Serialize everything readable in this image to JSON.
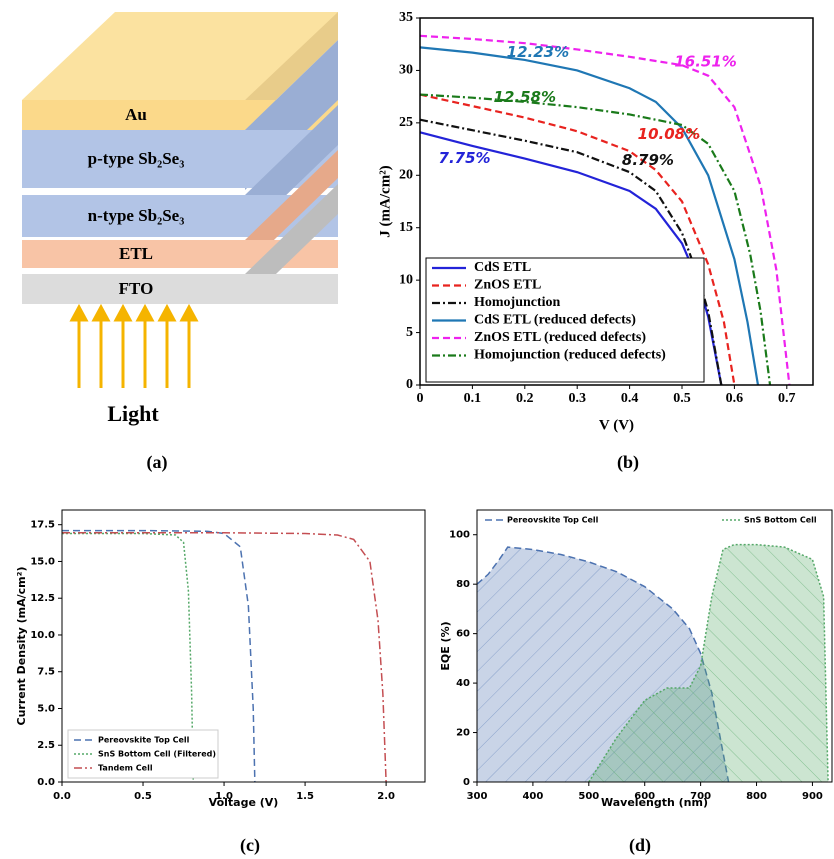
{
  "diagram": {
    "layers": [
      "Au",
      "p-type Sb₂Se₃",
      "n-type Sb₂Se₃",
      "ETL",
      "FTO"
    ],
    "light": "Light",
    "label": "(a)"
  },
  "chart_data": [
    {
      "type": "line",
      "label": "(b)",
      "x_label": "V (V)",
      "y_label": "J (mA/cm²)",
      "xlim": [
        0,
        0.75
      ],
      "ylim": [
        0,
        35
      ],
      "xticks": [
        0,
        0.1,
        0.2,
        0.3,
        0.4,
        0.5,
        0.6,
        0.7
      ],
      "yticks": [
        0,
        5,
        10,
        15,
        20,
        25,
        30,
        35
      ],
      "grid": false,
      "legend": "lower left",
      "series": [
        {
          "name": "CdS ETL",
          "color": "#2323d8",
          "linestyle": "solid",
          "x": [
            0,
            0.1,
            0.2,
            0.3,
            0.4,
            0.45,
            0.5,
            0.53,
            0.55,
            0.575
          ],
          "values": [
            24.1,
            22.8,
            21.6,
            20.3,
            18.5,
            16.8,
            13.5,
            10,
            6.5,
            0
          ]
        },
        {
          "name": "ZnOS ETL",
          "color": "#e8231f",
          "linestyle": "dashed",
          "x": [
            0,
            0.1,
            0.2,
            0.3,
            0.4,
            0.45,
            0.5,
            0.55,
            0.58,
            0.6
          ],
          "values": [
            27.7,
            26.6,
            25.5,
            24.2,
            22.3,
            20.5,
            17.5,
            11.5,
            6,
            0
          ]
        },
        {
          "name": "Homojunction",
          "color": "#111111",
          "linestyle": "dashdot",
          "x": [
            0,
            0.1,
            0.2,
            0.3,
            0.4,
            0.45,
            0.5,
            0.53,
            0.55,
            0.575
          ],
          "values": [
            25.3,
            24.3,
            23.3,
            22.2,
            20.3,
            18.5,
            14.5,
            10.5,
            7,
            0
          ]
        },
        {
          "name": "CdS ETL (reduced defects)",
          "color": "#1f77b4",
          "linestyle": "solid",
          "x": [
            0,
            0.1,
            0.2,
            0.3,
            0.4,
            0.45,
            0.5,
            0.55,
            0.6,
            0.625,
            0.645
          ],
          "values": [
            32.2,
            31.7,
            31,
            30,
            28.3,
            27,
            24.5,
            20,
            12,
            6,
            0
          ]
        },
        {
          "name": "ZnOS ETL (reduced defects)",
          "color": "#ee22ee",
          "linestyle": "dashed",
          "x": [
            0,
            0.1,
            0.2,
            0.3,
            0.4,
            0.5,
            0.55,
            0.6,
            0.65,
            0.68,
            0.705
          ],
          "values": [
            33.3,
            33,
            32.6,
            32,
            31.3,
            30.5,
            29.5,
            26.5,
            19,
            11,
            0
          ]
        },
        {
          "name": "Homojunction (reduced defects)",
          "color": "#1a7a1a",
          "linestyle": "dashdot",
          "x": [
            0,
            0.1,
            0.2,
            0.3,
            0.4,
            0.5,
            0.55,
            0.6,
            0.63,
            0.65,
            0.668
          ],
          "values": [
            27.7,
            27.4,
            27,
            26.5,
            25.8,
            24.8,
            23,
            18.5,
            12.5,
            7,
            0
          ]
        }
      ],
      "annotations": [
        {
          "text": "7.75%",
          "color": "#2323d8"
        },
        {
          "text": "8.79%",
          "color": "#111111"
        },
        {
          "text": "10.08%",
          "color": "#e8231f"
        },
        {
          "text": "12.23%",
          "color": "#1f77b4"
        },
        {
          "text": "12.58%",
          "color": "#1a7a1a"
        },
        {
          "text": "16.51%",
          "color": "#ee22ee"
        }
      ]
    },
    {
      "type": "line",
      "label": "(c)",
      "x_label": "Voltage (V)",
      "y_label": "Current Density (mA/cm²)",
      "xlim": [
        0,
        2.24
      ],
      "ylim": [
        0,
        18.5
      ],
      "xticks": [
        {
          "value": 0,
          "label": "0.0"
        },
        {
          "value": 0.5,
          "label": "0.5"
        },
        {
          "value": 1,
          "label": "1.0"
        },
        {
          "value": 1.5,
          "label": "1.5"
        },
        {
          "value": 2,
          "label": "2.0"
        }
      ],
      "yticks": [
        {
          "value": 0,
          "label": "0.0"
        },
        2.5,
        {
          "value": 5,
          "label": "5.0"
        },
        7.5,
        {
          "value": 10,
          "label": "10.0"
        },
        12.5,
        {
          "value": 15,
          "label": "15.0"
        },
        17.5
      ],
      "grid": false,
      "legend": "lower left",
      "series": [
        {
          "name": "Pereovskite Top Cell",
          "color": "#4c72b0",
          "linestyle": "dashed",
          "x": [
            0,
            0.5,
            0.9,
            1.0,
            1.1,
            1.15,
            1.18,
            1.19
          ],
          "values": [
            17.1,
            17.1,
            17.05,
            16.9,
            16,
            12,
            5,
            0
          ]
        },
        {
          "name": "SnS Bottom Cell (Filtered)",
          "color": "#55a868",
          "linestyle": "dotted",
          "x": [
            0,
            0.5,
            0.7,
            0.75,
            0.78,
            0.8,
            0.81
          ],
          "values": [
            16.9,
            16.9,
            16.8,
            16.3,
            13,
            6,
            0
          ]
        },
        {
          "name": "Tandem Cell",
          "color": "#c44e52",
          "linestyle": "dashdot",
          "x": [
            0,
            1,
            1.5,
            1.7,
            1.8,
            1.9,
            1.95,
            1.98,
            2.0
          ],
          "values": [
            16.95,
            16.95,
            16.9,
            16.8,
            16.5,
            15,
            11,
            6,
            0
          ]
        }
      ]
    },
    {
      "type": "area",
      "label": "(d)",
      "x_label": "Wavelength (nm)",
      "y_label": "EQE (%)",
      "xlim": [
        300,
        935
      ],
      "ylim": [
        0,
        110
      ],
      "xticks": [
        300,
        400,
        500,
        600,
        700,
        800,
        900
      ],
      "yticks": [
        0,
        20,
        40,
        60,
        80,
        100
      ],
      "grid": false,
      "legend": "upper",
      "series": [
        {
          "name": "Pereovskite Top Cell",
          "color": "#4c72b0",
          "linestyle": "dashed",
          "x": [
            300,
            320,
            340,
            355,
            400,
            450,
            500,
            550,
            600,
            650,
            680,
            700,
            720,
            740,
            750
          ],
          "values": [
            80,
            84,
            90,
            95,
            94,
            92,
            89,
            85,
            79,
            70,
            62,
            52,
            36,
            12,
            0
          ]
        },
        {
          "name": "SnS Bottom Cell",
          "color": "#55a868",
          "linestyle": "dotted",
          "x": [
            500,
            550,
            600,
            640,
            680,
            700,
            720,
            740,
            760,
            800,
            850,
            900,
            920,
            928
          ],
          "values": [
            0,
            18,
            33,
            38,
            38,
            47,
            75,
            94,
            96,
            96,
            95,
            90,
            75,
            0
          ]
        }
      ]
    }
  ]
}
